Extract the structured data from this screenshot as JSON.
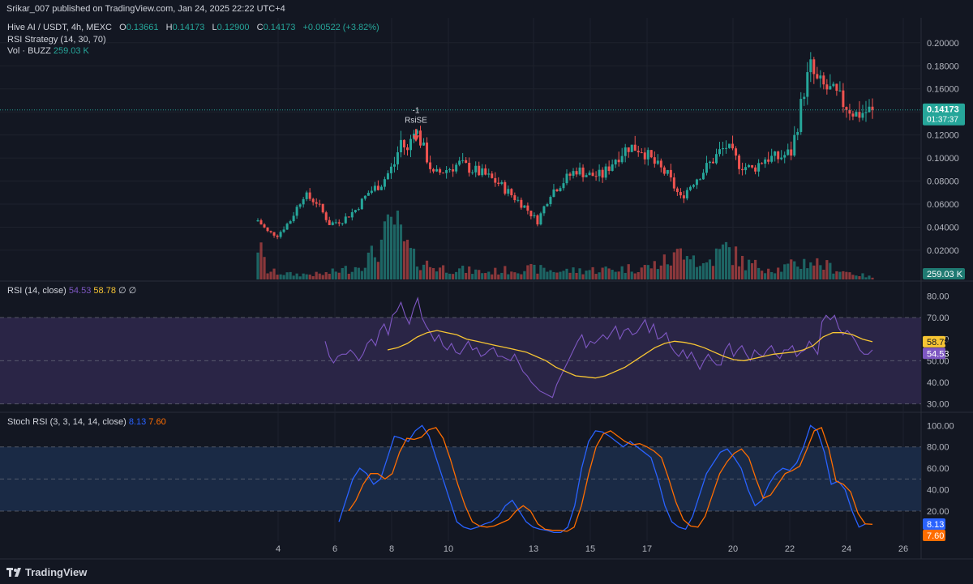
{
  "publish_line": "Srikar_007 published on TradingView.com, Jan 24, 2025 22:22 UTC+4",
  "symbol_title": "Hive AI / USDT, 4h, MEXC",
  "ohlc": {
    "o_label": "O",
    "o": "0.13661",
    "h_label": "H",
    "h": "0.14173",
    "l_label": "L",
    "l": "0.12900",
    "c_label": "C",
    "c": "0.14173",
    "change": "+0.00522 (+3.82%)"
  },
  "strategy_line": "RSI Strategy (14, 30, 70)",
  "volume_line": {
    "label": "Vol · BUZZ",
    "value": "259.03 K"
  },
  "rsi_panel": {
    "title": "RSI (14, close)",
    "v1": "54.53",
    "v2": "58.78",
    "extra": "∅ ∅"
  },
  "stoch_panel": {
    "title": "Stoch RSI (3, 3, 14, 14, close)",
    "k": "8.13",
    "d": "7.60"
  },
  "signal": {
    "qty": "-1",
    "name": "RsiSE"
  },
  "price_badge": {
    "price": "0.14173",
    "countdown": "01:37:37"
  },
  "volume_badge": "259.03 K",
  "rsi_badges": {
    "rsi_ma": "58.78",
    "rsi": "54.53"
  },
  "stoch_badges": {
    "k": "8.13",
    "d": "7.60"
  },
  "brand": "TradingView",
  "colors": {
    "background": "#131722",
    "up": "#26a69a",
    "down": "#ef5350",
    "rsi_line": "#7e57c2",
    "rsi_ma": "#f7c533",
    "stoch_k": "#2962ff",
    "stoch_d": "#ff6d00",
    "rsi_band": "#2a2546",
    "stoch_band": "#1a2a45"
  },
  "chart_data": [
    {
      "type": "candlestick",
      "title": "Hive AI / USDT, 4h, MEXC",
      "x_ticks": [
        "4",
        "6",
        "8",
        "10",
        "13",
        "15",
        "17",
        "20",
        "22",
        "24",
        "26"
      ],
      "y_ticks": [
        "0.20000",
        "0.18000",
        "0.16000",
        "0.14000",
        "0.12000",
        "0.10000",
        "0.08000",
        "0.06000",
        "0.04000",
        "0.02000"
      ],
      "ylim": [
        0.008,
        0.209
      ],
      "last_price": 0.14173,
      "keypoints": [
        [
          0,
          0.046
        ],
        [
          3,
          0.036
        ],
        [
          6,
          0.033
        ],
        [
          10,
          0.046
        ],
        [
          14,
          0.068
        ],
        [
          18,
          0.062
        ],
        [
          22,
          0.043
        ],
        [
          26,
          0.046
        ],
        [
          30,
          0.055
        ],
        [
          34,
          0.07
        ],
        [
          38,
          0.078
        ],
        [
          42,
          0.095
        ],
        [
          44,
          0.115
        ],
        [
          46,
          0.105
        ],
        [
          48,
          0.128
        ],
        [
          50,
          0.115
        ],
        [
          54,
          0.085
        ],
        [
          58,
          0.09
        ],
        [
          62,
          0.095
        ],
        [
          66,
          0.09
        ],
        [
          70,
          0.085
        ],
        [
          74,
          0.078
        ],
        [
          78,
          0.068
        ],
        [
          82,
          0.058
        ],
        [
          86,
          0.045
        ],
        [
          90,
          0.07
        ],
        [
          94,
          0.08
        ],
        [
          98,
          0.09
        ],
        [
          102,
          0.085
        ],
        [
          106,
          0.085
        ],
        [
          110,
          0.1
        ],
        [
          114,
          0.11
        ],
        [
          118,
          0.108
        ],
        [
          122,
          0.095
        ],
        [
          126,
          0.085
        ],
        [
          130,
          0.065
        ],
        [
          134,
          0.08
        ],
        [
          138,
          0.092
        ],
        [
          142,
          0.105
        ],
        [
          144,
          0.11
        ],
        [
          148,
          0.095
        ],
        [
          152,
          0.09
        ],
        [
          156,
          0.1
        ],
        [
          160,
          0.1
        ],
        [
          164,
          0.105
        ],
        [
          166,
          0.13
        ],
        [
          168,
          0.16
        ],
        [
          170,
          0.178
        ],
        [
          172,
          0.165
        ],
        [
          176,
          0.158
        ],
        [
          180,
          0.148
        ],
        [
          184,
          0.138
        ],
        [
          189,
          0.1417
        ]
      ],
      "volume": {
        "ylim": [
          0,
          0.6
        ],
        "keypoints": [
          [
            0,
            0.35
          ],
          [
            3,
            0.08
          ],
          [
            10,
            0.05
          ],
          [
            20,
            0.05
          ],
          [
            30,
            0.12
          ],
          [
            36,
            0.25
          ],
          [
            40,
            0.45
          ],
          [
            42,
            0.58
          ],
          [
            44,
            0.4
          ],
          [
            48,
            0.2
          ],
          [
            54,
            0.12
          ],
          [
            70,
            0.07
          ],
          [
            80,
            0.1
          ],
          [
            86,
            0.1
          ],
          [
            92,
            0.08
          ],
          [
            110,
            0.1
          ],
          [
            120,
            0.12
          ],
          [
            128,
            0.2
          ],
          [
            132,
            0.35
          ],
          [
            136,
            0.12
          ],
          [
            144,
            0.3
          ],
          [
            150,
            0.15
          ],
          [
            160,
            0.1
          ],
          [
            170,
            0.18
          ],
          [
            180,
            0.08
          ],
          [
            189,
            0.02
          ]
        ]
      }
    },
    {
      "type": "line",
      "title": "RSI (14, close)",
      "y_ticks": [
        "80.00",
        "70.00",
        "60.00",
        "50.00",
        "40.00",
        "30.00"
      ],
      "ylim": [
        28,
        82
      ],
      "band": [
        30,
        70
      ],
      "midline": 50,
      "series": [
        {
          "name": "RSI",
          "values": [
            59,
            52,
            49,
            52,
            53,
            53,
            55,
            53,
            50,
            53,
            58,
            60,
            57,
            64,
            67,
            62,
            71,
            73,
            77,
            71,
            67,
            74,
            79,
            70,
            66,
            63,
            59,
            62,
            57,
            55,
            58,
            54,
            53,
            56,
            59,
            55,
            56,
            52,
            53,
            55,
            56,
            52,
            52,
            51,
            50,
            53,
            49,
            45,
            43,
            40,
            38,
            36,
            35,
            34,
            33,
            39,
            43,
            47,
            51,
            55,
            59,
            62,
            56,
            59,
            58,
            60,
            62,
            60,
            63,
            66,
            60,
            64,
            65,
            62,
            63,
            66,
            69,
            63,
            67,
            60,
            61,
            63,
            57,
            54,
            52,
            55,
            51,
            54,
            50,
            46,
            50,
            53,
            50,
            48,
            48,
            55,
            58,
            52,
            55,
            57,
            53,
            50,
            55,
            53,
            52,
            55,
            57,
            53,
            51,
            55,
            55,
            57,
            52,
            54,
            55,
            59,
            56,
            53,
            68,
            71,
            69,
            71,
            65,
            62,
            64,
            62,
            59,
            55,
            53,
            53,
            55
          ]
        },
        {
          "name": "MA",
          "values": [
            55,
            56,
            58,
            61,
            63,
            64,
            63,
            62,
            60,
            59,
            58,
            57,
            56,
            55,
            54,
            52,
            50,
            47,
            45,
            43,
            42.5,
            42,
            43,
            45,
            47,
            50,
            53,
            56,
            58,
            59,
            58.5,
            57.5,
            56,
            54,
            52,
            50.5,
            50,
            51,
            52,
            53,
            53.5,
            54,
            55,
            57,
            61,
            63,
            63,
            62,
            60,
            58.78
          ]
        }
      ]
    },
    {
      "type": "line",
      "title": "Stoch RSI (3, 3, 14, 14, close)",
      "y_ticks": [
        "100.00",
        "80.00",
        "60.00",
        "40.00",
        "20.00"
      ],
      "ylim": [
        -2,
        104
      ],
      "band": [
        20,
        80
      ],
      "midline": 50,
      "series": [
        {
          "name": "K",
          "values": [
            10,
            30,
            50,
            60,
            55,
            45,
            50,
            70,
            90,
            88,
            85,
            95,
            100,
            90,
            70,
            50,
            30,
            10,
            5,
            3,
            5,
            8,
            10,
            15,
            25,
            30,
            20,
            10,
            5,
            3,
            2,
            0,
            0,
            5,
            25,
            60,
            85,
            95,
            94,
            90,
            85,
            80,
            85,
            80,
            75,
            70,
            50,
            25,
            10,
            5,
            3,
            15,
            35,
            55,
            65,
            75,
            78,
            70,
            60,
            40,
            25,
            30,
            45,
            55,
            60,
            58,
            65,
            80,
            100,
            95,
            75,
            45,
            48,
            40,
            20,
            5,
            8.13
          ]
        },
        {
          "name": "D",
          "values": [
            20,
            30,
            45,
            55,
            55,
            50,
            55,
            75,
            88,
            87,
            89,
            96,
            98,
            88,
            68,
            45,
            25,
            10,
            6,
            5,
            6,
            9,
            12,
            20,
            25,
            20,
            8,
            3,
            2,
            2,
            1,
            5,
            25,
            55,
            80,
            92,
            95,
            90,
            85,
            82,
            83,
            80,
            76,
            70,
            50,
            28,
            12,
            6,
            5,
            15,
            35,
            55,
            66,
            74,
            78,
            70,
            50,
            32,
            35,
            45,
            55,
            58,
            62,
            78,
            95,
            98,
            78,
            48,
            45,
            38,
            18,
            8,
            7.6
          ]
        }
      ]
    }
  ]
}
